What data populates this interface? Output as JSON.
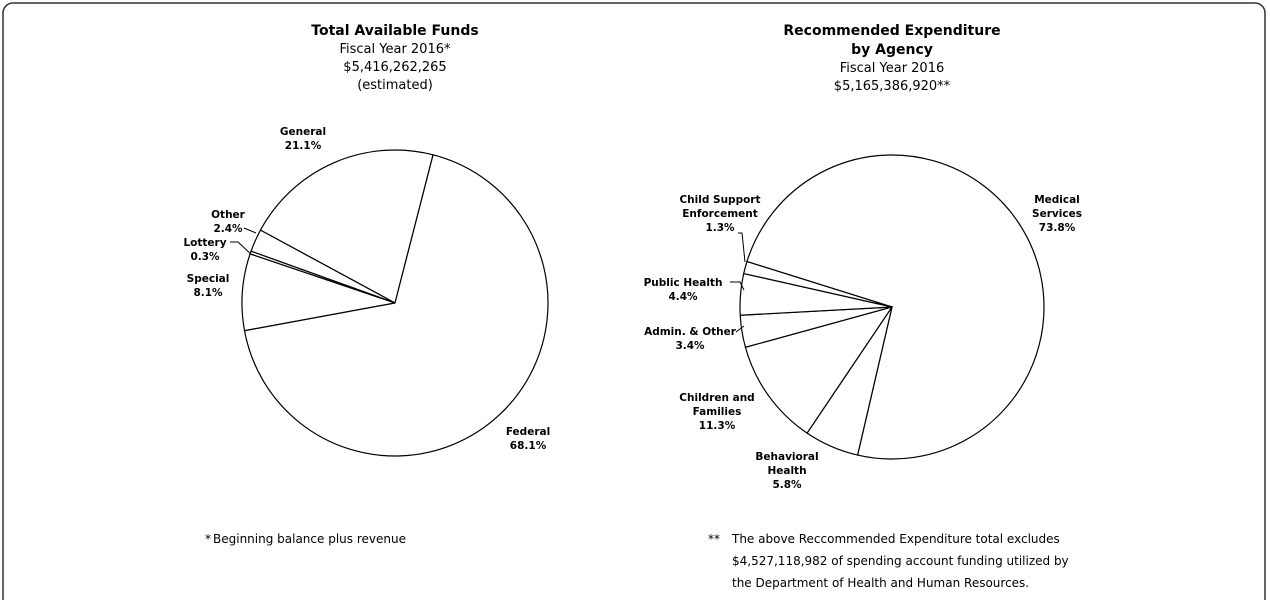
{
  "chart_data": [
    {
      "type": "pie",
      "title": "Total Available Funds",
      "subtitle": [
        "Fiscal Year 2016*",
        "$5,416,262,265",
        "(estimated)"
      ],
      "categories": [
        "General",
        "Other",
        "Lottery",
        "Special",
        "Federal"
      ],
      "values": [
        21.1,
        2.4,
        0.3,
        8.1,
        68.1
      ],
      "value_labels": [
        "21.1%",
        "2.4%",
        "0.3%",
        "8.1%",
        "68.1%"
      ],
      "color": "#ffffff",
      "footnote": {
        "marker": "*",
        "lines": [
          "Beginning balance plus revenue"
        ]
      }
    },
    {
      "type": "pie",
      "title": "Recommended Expenditure\nby Agency",
      "subtitle": [
        "Fiscal Year 2016",
        "$5,165,386,920**"
      ],
      "categories": [
        "Medical\nServices",
        "Behavioral\nHealth",
        "Children and\nFamilies",
        "Admin. & Other",
        "Public Health",
        "Child Support\nEnforcement"
      ],
      "values": [
        73.8,
        5.8,
        11.3,
        3.4,
        4.4,
        1.3
      ],
      "value_labels": [
        "73.8%",
        "5.8%",
        "11.3%",
        "3.4%",
        "4.4%",
        "1.3%"
      ],
      "color": "#ffffff",
      "footnote": {
        "marker": "**",
        "lines": [
          "The above Reccommended Expenditure total excludes",
          "$4,527,118,982 of spending account funding utilized by",
          "the Department of Health and Human Resources."
        ]
      }
    }
  ]
}
